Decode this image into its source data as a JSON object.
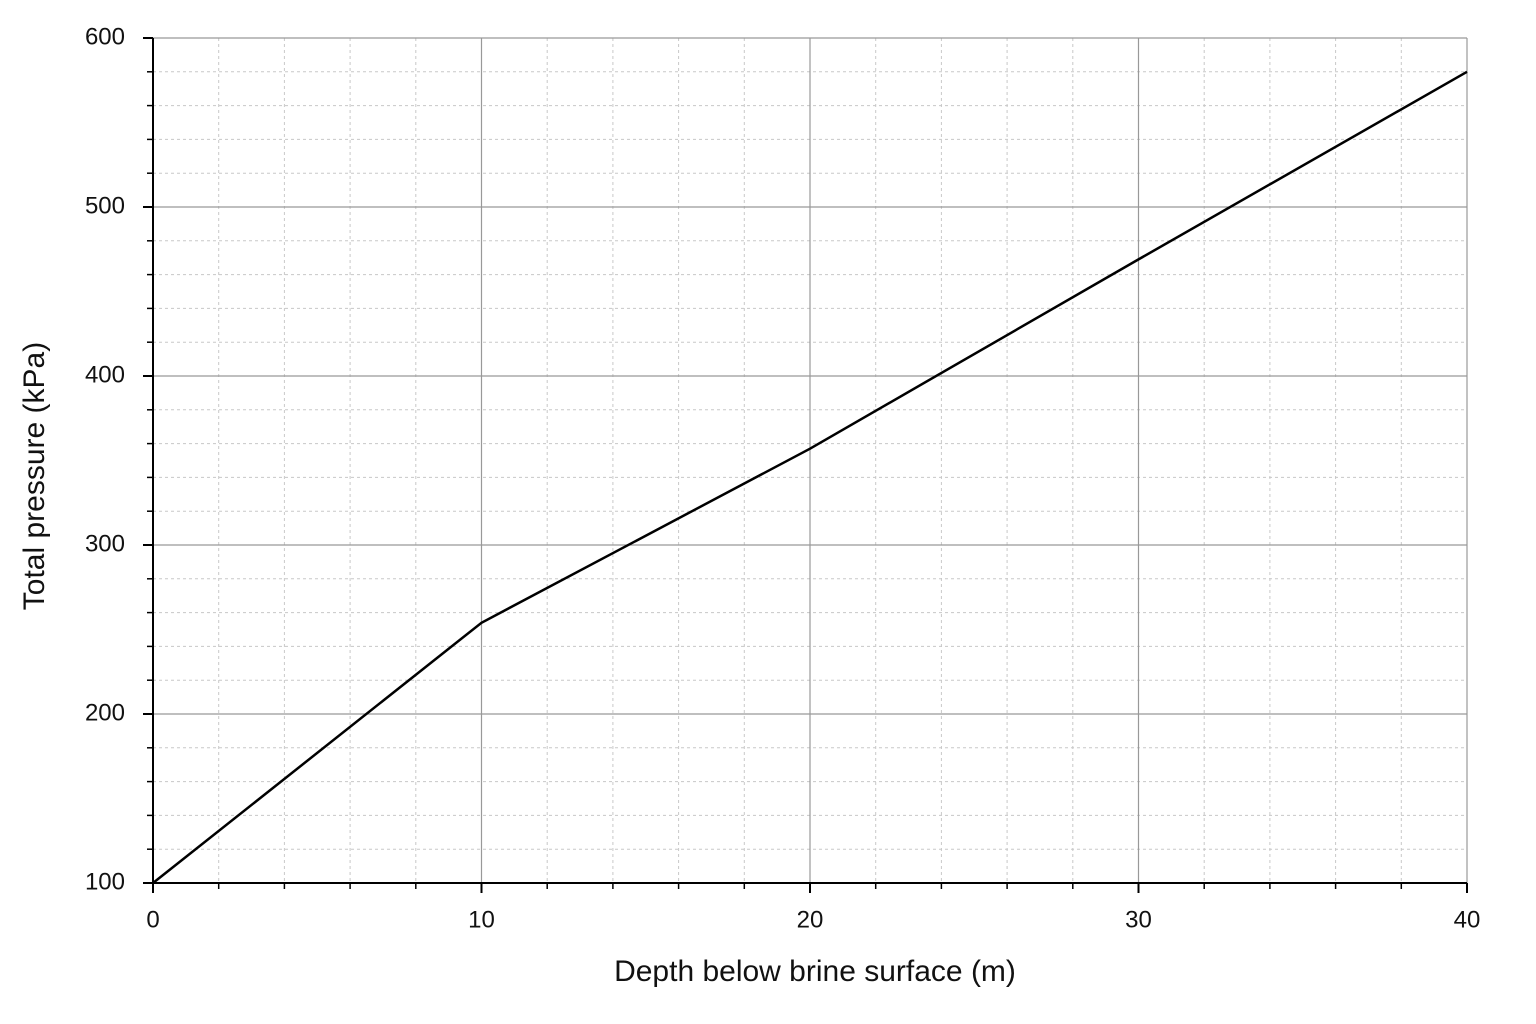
{
  "chart_data": {
    "type": "line",
    "x_label": "Depth below brine surface (m)",
    "y_label": "Total pressure (kPa)",
    "x": [
      0,
      10,
      20,
      30,
      40
    ],
    "series": [
      {
        "name": "Total pressure",
        "color": "#000000",
        "values": [
          100,
          254,
          357,
          469,
          580
        ]
      }
    ],
    "xlim": [
      0,
      40
    ],
    "xticks": [
      0,
      10,
      20,
      30,
      40
    ],
    "ylim": [
      100,
      600
    ],
    "yticks": [
      100,
      200,
      300,
      400,
      500,
      600
    ],
    "grid": true,
    "minor_grid": true,
    "legend": false
  }
}
